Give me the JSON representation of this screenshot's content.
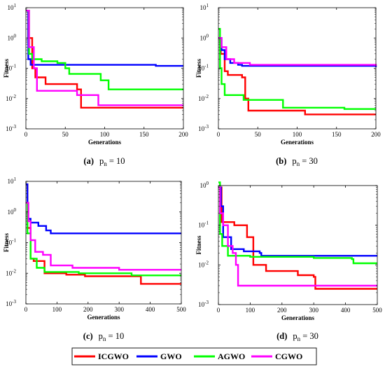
{
  "panels": [
    {
      "caption_id": "(a)",
      "caption_var": "p",
      "caption_sub": "n",
      "caption_eq": " = 10"
    },
    {
      "caption_id": "(b)",
      "caption_var": "p",
      "caption_sub": "n",
      "caption_eq": " = 30"
    },
    {
      "caption_id": "(c)",
      "caption_var": "p",
      "caption_sub": "n",
      "caption_eq": " = 10"
    },
    {
      "caption_id": "(d)",
      "caption_var": "p",
      "caption_sub": "n",
      "caption_eq": " = 30"
    }
  ],
  "legend": {
    "items": [
      {
        "label": "ICGWO",
        "color": "#ff0000"
      },
      {
        "label": "GWO",
        "color": "#0000ff"
      },
      {
        "label": "AGWO",
        "color": "#00ff00"
      },
      {
        "label": "CGWO",
        "color": "#ff00ff"
      }
    ]
  },
  "chart_data": [
    {
      "type": "line",
      "xlabel": "Generations",
      "ylabel": "Fitness",
      "xlim": [
        0,
        200
      ],
      "ylim": [
        0.001,
        10
      ],
      "yscale": "log",
      "xticks": [
        "0",
        "50",
        "100",
        "150",
        "200"
      ],
      "yticks": [
        {
          "base": "10",
          "exp": "-3"
        },
        {
          "base": "10",
          "exp": "-2"
        },
        {
          "base": "10",
          "exp": "-1"
        },
        {
          "base": "10",
          "exp": "0"
        },
        {
          "base": "10",
          "exp": "1"
        }
      ],
      "series": [
        {
          "name": "ICGWO",
          "color": "#ff0000",
          "x": [
            0,
            3,
            8,
            12,
            20,
            25,
            35,
            45,
            65,
            70,
            200
          ],
          "y": [
            8,
            1,
            0.1,
            0.05,
            0.05,
            0.03,
            0.03,
            0.03,
            0.02,
            0.005,
            0.005
          ]
        },
        {
          "name": "GWO",
          "color": "#0000ff",
          "x": [
            0,
            3,
            6,
            160,
            165,
            200
          ],
          "y": [
            8,
            0.2,
            0.13,
            0.13,
            0.12,
            0.12
          ]
        },
        {
          "name": "AGWO",
          "color": "#00ff00",
          "x": [
            0,
            4,
            8,
            20,
            40,
            50,
            55,
            90,
            95,
            105,
            200
          ],
          "y": [
            8,
            0.3,
            0.2,
            0.17,
            0.15,
            0.1,
            0.065,
            0.065,
            0.04,
            0.02,
            0.02
          ]
        },
        {
          "name": "CGWO",
          "color": "#ff00ff",
          "x": [
            0,
            4,
            10,
            14,
            40,
            65,
            85,
            92,
            100,
            200
          ],
          "y": [
            8,
            0.5,
            0.1,
            0.018,
            0.018,
            0.013,
            0.013,
            0.006,
            0.006,
            0.006
          ]
        }
      ]
    },
    {
      "type": "line",
      "xlabel": "Generations",
      "ylabel": "Fitness",
      "xlim": [
        0,
        200
      ],
      "ylim": [
        0.001,
        10
      ],
      "yscale": "log",
      "xticks": [
        "0",
        "50",
        "100",
        "150",
        "200"
      ],
      "yticks": [
        {
          "base": "10",
          "exp": "-3"
        },
        {
          "base": "10",
          "exp": "-2"
        },
        {
          "base": "10",
          "exp": "-1"
        },
        {
          "base": "10",
          "exp": "0"
        },
        {
          "base": "10",
          "exp": "1"
        }
      ],
      "series": [
        {
          "name": "ICGWO",
          "color": "#ff0000",
          "x": [
            0,
            3,
            8,
            12,
            30,
            34,
            38,
            105,
            110,
            200
          ],
          "y": [
            1,
            0.3,
            0.08,
            0.06,
            0.05,
            0.01,
            0.004,
            0.004,
            0.003,
            0.003
          ]
        },
        {
          "name": "GWO",
          "color": "#0000ff",
          "x": [
            0,
            4,
            8,
            15,
            25,
            30,
            200
          ],
          "y": [
            1,
            0.4,
            0.2,
            0.15,
            0.13,
            0.12,
            0.11
          ]
        },
        {
          "name": "AGWO",
          "color": "#00ff00",
          "x": [
            0,
            2,
            4,
            8,
            30,
            32,
            45,
            80,
            82,
            155,
            160,
            200
          ],
          "y": [
            2,
            0.1,
            0.03,
            0.013,
            0.013,
            0.009,
            0.009,
            0.009,
            0.005,
            0.005,
            0.0045,
            0.0045
          ]
        },
        {
          "name": "CGWO",
          "color": "#ff00ff",
          "x": [
            0,
            4,
            10,
            20,
            40,
            200
          ],
          "y": [
            1,
            0.5,
            0.2,
            0.15,
            0.13,
            0.12
          ]
        }
      ]
    },
    {
      "type": "line",
      "xlabel": "Generations",
      "ylabel": "Fitness",
      "xlim": [
        0,
        500
      ],
      "ylim": [
        0.001,
        10
      ],
      "yscale": "log",
      "xticks": [
        "0",
        "100",
        "200",
        "300",
        "400",
        "500"
      ],
      "yticks": [
        {
          "base": "10",
          "exp": "-3"
        },
        {
          "base": "10",
          "exp": "-2"
        },
        {
          "base": "10",
          "exp": "-1"
        },
        {
          "base": "10",
          "exp": "0"
        },
        {
          "base": "10",
          "exp": "1"
        }
      ],
      "series": [
        {
          "name": "ICGWO",
          "color": "#ff0000",
          "x": [
            0,
            5,
            15,
            25,
            60,
            130,
            190,
            360,
            370,
            500
          ],
          "y": [
            8,
            0.3,
            0.03,
            0.025,
            0.01,
            0.009,
            0.008,
            0.008,
            0.0045,
            0.0045
          ]
        },
        {
          "name": "GWO",
          "color": "#0000ff",
          "x": [
            0,
            5,
            15,
            40,
            65,
            80,
            500
          ],
          "y": [
            8,
            0.6,
            0.45,
            0.35,
            0.25,
            0.2,
            0.2
          ]
        },
        {
          "name": "AGWO",
          "color": "#00ff00",
          "x": [
            0,
            5,
            15,
            35,
            60,
            170,
            340,
            500
          ],
          "y": [
            2,
            0.2,
            0.03,
            0.015,
            0.011,
            0.01,
            0.0085,
            0.0085
          ]
        },
        {
          "name": "CGWO",
          "color": "#ff00ff",
          "x": [
            0,
            8,
            15,
            30,
            55,
            80,
            150,
            300,
            500
          ],
          "y": [
            2,
            0.5,
            0.12,
            0.05,
            0.04,
            0.018,
            0.015,
            0.013,
            0.013
          ]
        }
      ]
    },
    {
      "type": "line",
      "xlabel": "Generations",
      "ylabel": "Fitness",
      "xlim": [
        0,
        500
      ],
      "ylim": [
        0.001,
        1
      ],
      "yscale": "log",
      "xticks": [
        "0",
        "100",
        "200",
        "300",
        "400",
        "500"
      ],
      "yticks": [
        {
          "base": "10",
          "exp": "-3"
        },
        {
          "base": "10",
          "exp": "-2"
        },
        {
          "base": "10",
          "exp": "-1"
        },
        {
          "base": "10",
          "exp": "0"
        }
      ],
      "series": [
        {
          "name": "ICGWO",
          "color": "#ff0000",
          "x": [
            0,
            10,
            50,
            90,
            110,
            150,
            250,
            300,
            305,
            500
          ],
          "y": [
            0.9,
            0.12,
            0.1,
            0.05,
            0.01,
            0.007,
            0.0055,
            0.005,
            0.0025,
            0.0025
          ]
        },
        {
          "name": "GWO",
          "color": "#0000ff",
          "x": [
            0,
            8,
            15,
            40,
            80,
            130,
            135,
            500
          ],
          "y": [
            0.9,
            0.3,
            0.05,
            0.025,
            0.022,
            0.02,
            0.017,
            0.017
          ]
        },
        {
          "name": "AGWO",
          "color": "#00ff00",
          "x": [
            0,
            5,
            12,
            30,
            100,
            300,
            420,
            425,
            500
          ],
          "y": [
            1.2,
            0.06,
            0.03,
            0.017,
            0.016,
            0.015,
            0.014,
            0.011,
            0.011
          ]
        },
        {
          "name": "CGWO",
          "color": "#ff00ff",
          "x": [
            0,
            5,
            15,
            30,
            45,
            55,
            62,
            500
          ],
          "y": [
            0.9,
            0.2,
            0.1,
            0.03,
            0.02,
            0.01,
            0.003,
            0.003
          ]
        }
      ]
    }
  ]
}
